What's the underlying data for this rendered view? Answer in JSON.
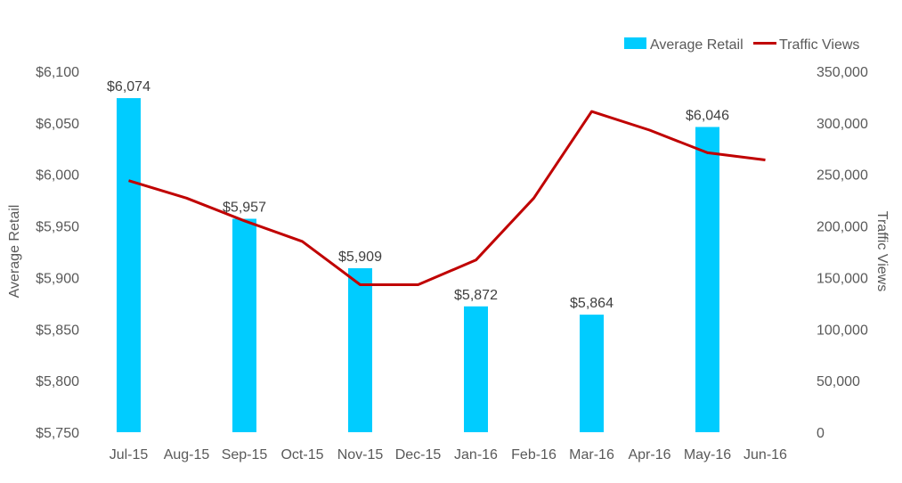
{
  "chart_data": {
    "type": "bar",
    "categories": [
      "Jul-15",
      "Aug-15",
      "Sep-15",
      "Oct-15",
      "Nov-15",
      "Dec-15",
      "Jan-16",
      "Feb-16",
      "Mar-16",
      "Apr-16",
      "May-16",
      "Jun-16"
    ],
    "series": [
      {
        "name": "Average Retail",
        "type": "bar",
        "axis": "left",
        "color": "#00CCFF",
        "values": [
          6074,
          null,
          5957,
          null,
          5909,
          null,
          5872,
          null,
          5864,
          null,
          6046,
          null
        ],
        "labels": [
          "$6,074",
          "",
          "$5,957",
          "",
          "$5,909",
          "",
          "$5,872",
          "",
          "$5,864",
          "",
          "$6,046",
          ""
        ]
      },
      {
        "name": "Traffic Views",
        "type": "line",
        "axis": "right",
        "color": "#C00000",
        "values": [
          244000,
          227000,
          205000,
          185000,
          143000,
          143000,
          167000,
          227000,
          311000,
          293000,
          271000,
          264000
        ]
      }
    ],
    "ylabel": "Average Retail",
    "y2label": "Traffic Views",
    "ylim": [
      5750,
      6100
    ],
    "y2lim": [
      0,
      350000
    ],
    "yticks": [
      "$5,750",
      "$5,800",
      "$5,850",
      "$5,900",
      "$5,950",
      "$6,000",
      "$6,050",
      "$6,100"
    ],
    "y2ticks": [
      "0",
      "50,000",
      "100,000",
      "150,000",
      "200,000",
      "250,000",
      "300,000",
      "350,000"
    ],
    "grid": false,
    "legend_position": "top-right"
  }
}
